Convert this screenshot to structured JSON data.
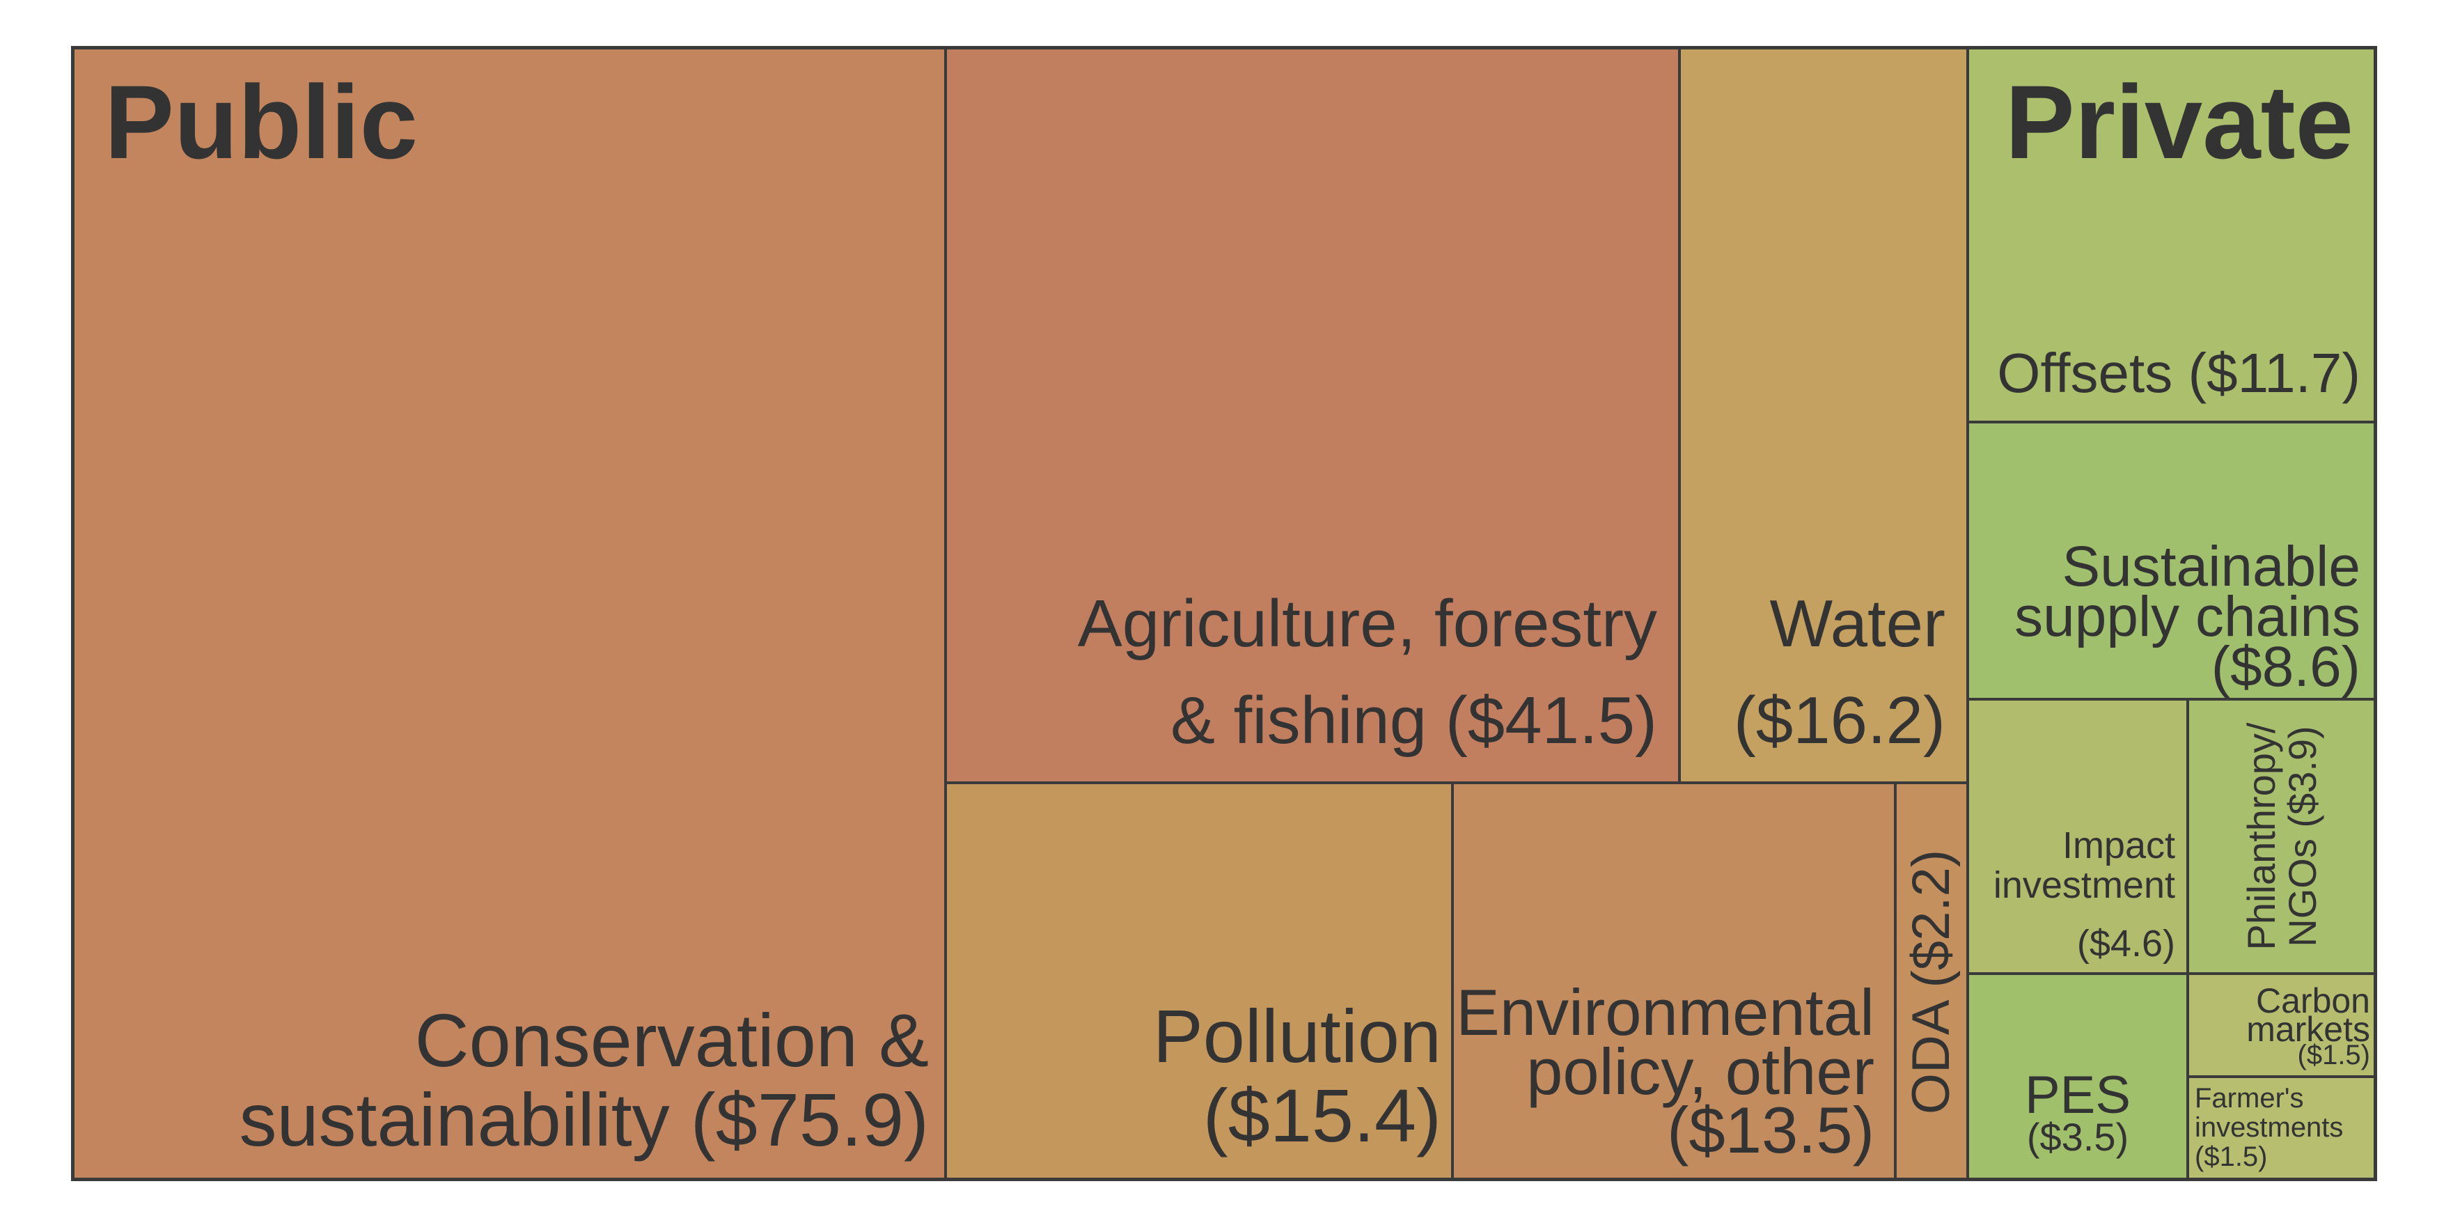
{
  "chart_data": {
    "type": "treemap",
    "groups": [
      {
        "name": "Public",
        "items": [
          {
            "label": "Conservation & sustainability ($75.9)",
            "lines": [
              "Conservation & ",
              "sustainability ($75.9)"
            ],
            "value": 75.9,
            "color": "#c2855e"
          },
          {
            "label": "Agriculture, forestry & fishing ($41.5)",
            "lines": [
              "Agriculture, forestry",
              "& fishing ($41.5)"
            ],
            "value": 41.5,
            "color": "#c27f60"
          },
          {
            "label": "Water ($16.2)",
            "lines": [
              "Water",
              "($16.2)"
            ],
            "value": 16.2,
            "color": "#c4a160"
          },
          {
            "label": "Pollution ($15.4)",
            "lines": [
              "Pollution",
              "($15.4)"
            ],
            "value": 15.4,
            "color": "#c4975d"
          },
          {
            "label": "Environmental policy, other ($13.5)",
            "lines": [
              "Environmental",
              "policy, other",
              "($13.5)"
            ],
            "value": 13.5,
            "color": "#c28c5f"
          },
          {
            "label": "ODA ($2.2)",
            "lines": [
              "ODA ($2.2)"
            ],
            "value": 2.2,
            "color": "#c3905e"
          }
        ]
      },
      {
        "name": "Private",
        "items": [
          {
            "label": "Offsets ($11.7)",
            "lines": [
              "Offsets ($11.7)"
            ],
            "value": 11.7,
            "color": "#abbf6c"
          },
          {
            "label": "Sustainable supply chains ($8.6)",
            "lines": [
              "Sustainable",
              "supply chains",
              "($8.6)"
            ],
            "value": 8.6,
            "color": "#a1c06d"
          },
          {
            "label": "Impact investment ($4.6)",
            "lines": [
              "Impact",
              "investment",
              "($4.6)"
            ],
            "value": 4.6,
            "color": "#b1bd6d"
          },
          {
            "label": "Philanthropy/ NGOs ($3.9)",
            "lines": [
              "Philanthropy/",
              "NGOs ($3.9)"
            ],
            "value": 3.9,
            "color": "#a8bf6d"
          },
          {
            "label": "PES ($3.5)",
            "lines": [
              "PES",
              "($3.5)"
            ],
            "value": 3.5,
            "color": "#a1c06c"
          },
          {
            "label": "Carbon markets ($1.5)",
            "lines": [
              "Carbon",
              "markets",
              "($1.5)"
            ],
            "value": 1.5,
            "color": "#b6bd6f"
          },
          {
            "label": "Farmer's investments ($1.5)",
            "lines": [
              "Farmer's",
              "investments",
              "($1.5)"
            ],
            "value": 1.5,
            "color": "#b7be70"
          }
        ]
      }
    ]
  }
}
